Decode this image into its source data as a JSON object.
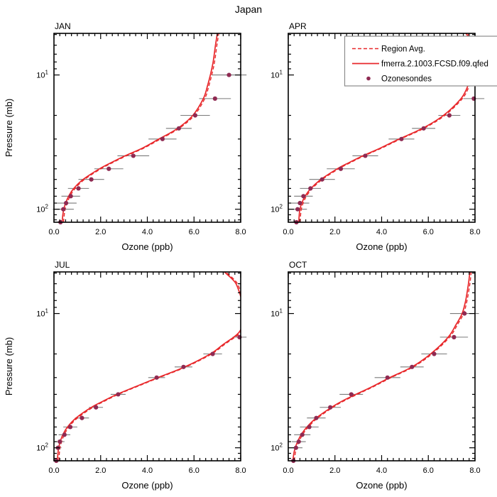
{
  "title": "Japan",
  "colors": {
    "model_line": "#e8282b",
    "region_avg_line": "#e8282b",
    "sonde_dot": "#8f2a52",
    "error_bar": "#7a7a7a",
    "axis": "#000000",
    "legend_border": "#8c8c8c",
    "background": "#ffffff"
  },
  "axes": {
    "xlabel": "Ozone (ppb)",
    "ylabel": "Pressure (mb)",
    "x_range": [
      0,
      8
    ],
    "x_major_values": [
      0,
      2,
      4,
      6,
      8
    ],
    "x_tick_labels": [
      "0.0",
      "2.0",
      "4.0",
      "6.0",
      "8.0"
    ],
    "x_minor_step": 0.25,
    "y_scale": "log",
    "y_range_mb": [
      4.9,
      125
    ],
    "y_major_ticks": [
      {
        "value": 10,
        "mantissa": "10",
        "exponent": "1"
      },
      {
        "value": 100,
        "mantissa": "10",
        "exponent": "2"
      }
    ],
    "y_minor_ticks": [
      5,
      6,
      7,
      8,
      9,
      20,
      30,
      40,
      50,
      60,
      70,
      80,
      90,
      110,
      120
    ]
  },
  "legend": {
    "position": "top-right-of-APR-panel-overflowing-right-edge",
    "entries": [
      {
        "label": "Region Avg.",
        "style": "dashed-line"
      },
      {
        "label": "fmerra.2.1003.FCSD.f09.qfed",
        "style": "solid-line"
      },
      {
        "label": "Ozonesondes",
        "style": "dot"
      }
    ]
  },
  "chart_data": [
    {
      "type": "line",
      "title": "JAN",
      "xlabel": "Ozone (ppb)",
      "ylabel": "Pressure (mb)",
      "x_range": [
        0,
        8
      ],
      "y_scale": "log",
      "y_range_mb": [
        4.9,
        125
      ],
      "region_avg_dx": 0.06,
      "model_p_x": [
        [
          125,
          0.35
        ],
        [
          110,
          0.38
        ],
        [
          100,
          0.42
        ],
        [
          90,
          0.5
        ],
        [
          80,
          0.63
        ],
        [
          70,
          0.85
        ],
        [
          60,
          1.25
        ],
        [
          50,
          1.95
        ],
        [
          45,
          2.45
        ],
        [
          40,
          3.05
        ],
        [
          35,
          3.8
        ],
        [
          30,
          4.5
        ],
        [
          25,
          5.3
        ],
        [
          20,
          5.95
        ],
        [
          15,
          6.4
        ],
        [
          12,
          6.58
        ],
        [
          10,
          6.7
        ],
        [
          8,
          6.82
        ],
        [
          6,
          6.92
        ],
        [
          4.9,
          7.0
        ]
      ],
      "sondes_p_x_err": [
        [
          10,
          7.5,
          0.75
        ],
        [
          15,
          6.9,
          0.68
        ],
        [
          20,
          6.05,
          0.63
        ],
        [
          25,
          5.35,
          0.55
        ],
        [
          30,
          4.65,
          0.6
        ],
        [
          40,
          3.4,
          0.68
        ],
        [
          50,
          2.35,
          0.62
        ],
        [
          60,
          1.6,
          0.55
        ],
        [
          70,
          1.05,
          0.45
        ],
        [
          80,
          0.72,
          0.4
        ],
        [
          90,
          0.52,
          0.45
        ],
        [
          100,
          0.4,
          0.45
        ],
        [
          125,
          0.28,
          0.12
        ]
      ]
    },
    {
      "type": "line",
      "title": "APR",
      "xlabel": "Ozone (ppb)",
      "ylabel": "Pressure (mb)",
      "x_range": [
        0,
        8
      ],
      "y_scale": "log",
      "y_range_mb": [
        4.9,
        125
      ],
      "region_avg_dx": 0.06,
      "model_p_x": [
        [
          125,
          0.45
        ],
        [
          110,
          0.47
        ],
        [
          100,
          0.5
        ],
        [
          90,
          0.58
        ],
        [
          80,
          0.72
        ],
        [
          70,
          0.97
        ],
        [
          60,
          1.4
        ],
        [
          50,
          2.1
        ],
        [
          45,
          2.6
        ],
        [
          40,
          3.2
        ],
        [
          35,
          3.95
        ],
        [
          30,
          4.75
        ],
        [
          25,
          5.75
        ],
        [
          20,
          6.65
        ],
        [
          15,
          7.4
        ],
        [
          12,
          7.7
        ],
        [
          10,
          7.85
        ],
        [
          8,
          7.95
        ],
        [
          7,
          7.97
        ],
        [
          6,
          7.9
        ],
        [
          5.5,
          7.8
        ],
        [
          4.9,
          7.62
        ]
      ],
      "sondes_p_x_err": [
        [
          15,
          7.95,
          0.45
        ],
        [
          20,
          6.9,
          0.47
        ],
        [
          25,
          5.8,
          0.5
        ],
        [
          30,
          4.85,
          0.55
        ],
        [
          40,
          3.3,
          0.55
        ],
        [
          50,
          2.25,
          0.6
        ],
        [
          60,
          1.45,
          0.55
        ],
        [
          70,
          0.95,
          0.45
        ],
        [
          80,
          0.65,
          0.4
        ],
        [
          90,
          0.5,
          0.4
        ],
        [
          100,
          0.4,
          0.4
        ],
        [
          125,
          0.35,
          0.12
        ]
      ]
    },
    {
      "type": "line",
      "title": "JUL",
      "xlabel": "Ozone (ppb)",
      "ylabel": "Pressure (mb)",
      "x_range": [
        0,
        8
      ],
      "y_scale": "log",
      "y_range_mb": [
        4.9,
        125
      ],
      "region_avg_dx": 0.06,
      "model_p_x": [
        [
          125,
          0.15
        ],
        [
          110,
          0.17
        ],
        [
          100,
          0.2
        ],
        [
          90,
          0.27
        ],
        [
          80,
          0.38
        ],
        [
          70,
          0.58
        ],
        [
          60,
          0.95
        ],
        [
          50,
          1.6
        ],
        [
          45,
          2.1
        ],
        [
          40,
          2.7
        ],
        [
          35,
          3.5
        ],
        [
          30,
          4.45
        ],
        [
          25,
          5.6
        ],
        [
          20,
          6.7
        ],
        [
          17,
          7.25
        ],
        [
          15,
          7.7
        ],
        [
          14,
          7.9
        ],
        [
          13,
          8.02
        ],
        [
          12,
          8.06
        ],
        [
          10,
          8.08
        ],
        [
          8,
          8.04
        ],
        [
          7,
          7.95
        ],
        [
          6,
          7.8
        ],
        [
          5.5,
          7.62
        ],
        [
          4.9,
          7.3
        ]
      ],
      "sondes_p_x_err": [
        [
          15,
          7.95,
          0.3
        ],
        [
          20,
          6.8,
          0.4
        ],
        [
          25,
          5.55,
          0.38
        ],
        [
          30,
          4.4,
          0.36
        ],
        [
          40,
          2.75,
          0.32
        ],
        [
          50,
          1.8,
          0.3
        ],
        [
          60,
          1.2,
          0.3
        ],
        [
          70,
          0.7,
          0.3
        ],
        [
          80,
          0.45,
          0.25
        ],
        [
          90,
          0.25,
          0.2
        ],
        [
          100,
          0.17,
          0.15
        ],
        [
          125,
          0.1,
          0.08
        ]
      ]
    },
    {
      "type": "line",
      "title": "OCT",
      "xlabel": "Ozone (ppb)",
      "ylabel": "Pressure (mb)",
      "x_range": [
        0,
        8
      ],
      "y_scale": "log",
      "y_range_mb": [
        4.9,
        125
      ],
      "region_avg_dx": 0.06,
      "model_p_x": [
        [
          125,
          0.2
        ],
        [
          110,
          0.24
        ],
        [
          100,
          0.3
        ],
        [
          90,
          0.4
        ],
        [
          80,
          0.55
        ],
        [
          70,
          0.8
        ],
        [
          60,
          1.2
        ],
        [
          50,
          1.85
        ],
        [
          45,
          2.3
        ],
        [
          40,
          2.9
        ],
        [
          35,
          3.6
        ],
        [
          30,
          4.35
        ],
        [
          25,
          5.3
        ],
        [
          20,
          6.1
        ],
        [
          15,
          6.85
        ],
        [
          12,
          7.2
        ],
        [
          10,
          7.45
        ],
        [
          8,
          7.6
        ],
        [
          6,
          7.72
        ],
        [
          4.9,
          7.78
        ]
      ],
      "sondes_p_x_err": [
        [
          10,
          7.55,
          0.62
        ],
        [
          15,
          7.1,
          0.6
        ],
        [
          20,
          6.25,
          0.55
        ],
        [
          25,
          5.3,
          0.5
        ],
        [
          30,
          4.25,
          0.55
        ],
        [
          40,
          2.7,
          0.5
        ],
        [
          50,
          1.8,
          0.45
        ],
        [
          60,
          1.2,
          0.4
        ],
        [
          70,
          0.9,
          0.4
        ],
        [
          80,
          0.6,
          0.35
        ],
        [
          90,
          0.45,
          0.3
        ],
        [
          100,
          0.33,
          0.28
        ],
        [
          125,
          0.22,
          0.1
        ]
      ]
    }
  ]
}
